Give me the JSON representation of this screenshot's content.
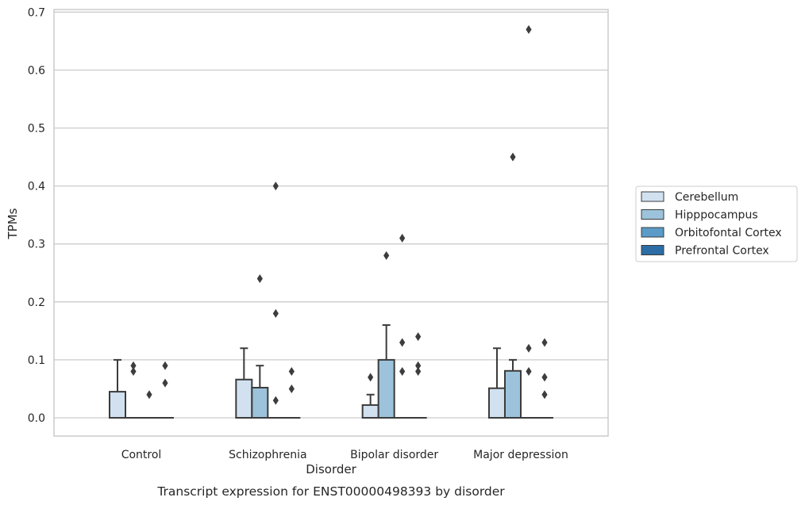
{
  "chart_data": {
    "type": "box",
    "caption": "Transcript expression for ENST00000498393 by disorder",
    "xlabel": "Disorder",
    "ylabel": "TPMs",
    "ylim": [
      -0.033,
      0.705
    ],
    "yticks": [
      0.0,
      0.1,
      0.2,
      0.3,
      0.4,
      0.5,
      0.6,
      0.7
    ],
    "ytick_labels": [
      "0.0",
      "0.1",
      "0.2",
      "0.3",
      "0.4",
      "0.5",
      "0.6",
      "0.7"
    ],
    "grid": "horizontal",
    "legend_position": "right",
    "categories": [
      "Control",
      "Schizophrenia",
      "Bipolar disorder",
      "Major depression"
    ],
    "series": [
      {
        "name": "Cerebellum",
        "color": "#d1e1f0",
        "boxes": [
          {
            "q1": 0.0,
            "median": 0.0,
            "q3": 0.045,
            "whisker_low": 0.0,
            "whisker_high": 0.1,
            "outliers": []
          },
          {
            "q1": 0.0,
            "median": 0.0,
            "q3": 0.066,
            "whisker_low": 0.0,
            "whisker_high": 0.12,
            "outliers": []
          },
          {
            "q1": 0.0,
            "median": 0.0,
            "q3": 0.022,
            "whisker_low": 0.0,
            "whisker_high": 0.04,
            "outliers": [
              0.07
            ]
          },
          {
            "q1": 0.0,
            "median": 0.0,
            "q3": 0.051,
            "whisker_low": 0.0,
            "whisker_high": 0.12,
            "outliers": []
          }
        ]
      },
      {
        "name": "Hipppocampus",
        "color": "#9cc3db",
        "boxes": [
          {
            "q1": 0.0,
            "median": 0.0,
            "q3": 0.0,
            "whisker_low": 0.0,
            "whisker_high": 0.0,
            "outliers": [
              0.08,
              0.09
            ]
          },
          {
            "q1": 0.0,
            "median": 0.0,
            "q3": 0.052,
            "whisker_low": 0.0,
            "whisker_high": 0.09,
            "outliers": [
              0.24
            ]
          },
          {
            "q1": 0.0,
            "median": 0.0,
            "q3": 0.1,
            "whisker_low": 0.0,
            "whisker_high": 0.16,
            "outliers": [
              0.28
            ]
          },
          {
            "q1": 0.0,
            "median": 0.0,
            "q3": 0.081,
            "whisker_low": 0.0,
            "whisker_high": 0.1,
            "outliers": [
              0.45
            ]
          }
        ]
      },
      {
        "name": "Orbitofontal Cortex",
        "color": "#5a9bc8",
        "boxes": [
          {
            "q1": 0.0,
            "median": 0.0,
            "q3": 0.0,
            "whisker_low": 0.0,
            "whisker_high": 0.0,
            "outliers": [
              0.04
            ]
          },
          {
            "q1": 0.0,
            "median": 0.0,
            "q3": 0.0,
            "whisker_low": 0.0,
            "whisker_high": 0.0,
            "outliers": [
              0.03,
              0.18,
              0.4
            ]
          },
          {
            "q1": 0.0,
            "median": 0.0,
            "q3": 0.0,
            "whisker_low": 0.0,
            "whisker_high": 0.0,
            "outliers": [
              0.08,
              0.13,
              0.31
            ]
          },
          {
            "q1": 0.0,
            "median": 0.0,
            "q3": 0.0,
            "whisker_low": 0.0,
            "whisker_high": 0.0,
            "outliers": [
              0.08,
              0.12,
              0.67
            ]
          }
        ]
      },
      {
        "name": "Prefrontal Cortex",
        "color": "#2c6da5",
        "boxes": [
          {
            "q1": 0.0,
            "median": 0.0,
            "q3": 0.0,
            "whisker_low": 0.0,
            "whisker_high": 0.0,
            "outliers": [
              0.06,
              0.09
            ]
          },
          {
            "q1": 0.0,
            "median": 0.0,
            "q3": 0.0,
            "whisker_low": 0.0,
            "whisker_high": 0.0,
            "outliers": [
              0.05,
              0.08
            ]
          },
          {
            "q1": 0.0,
            "median": 0.0,
            "q3": 0.0,
            "whisker_low": 0.0,
            "whisker_high": 0.0,
            "outliers": [
              0.08,
              0.09,
              0.14
            ]
          },
          {
            "q1": 0.0,
            "median": 0.0,
            "q3": 0.0,
            "whisker_low": 0.0,
            "whisker_high": 0.0,
            "outliers": [
              0.04,
              0.07,
              0.13
            ]
          }
        ]
      }
    ]
  }
}
